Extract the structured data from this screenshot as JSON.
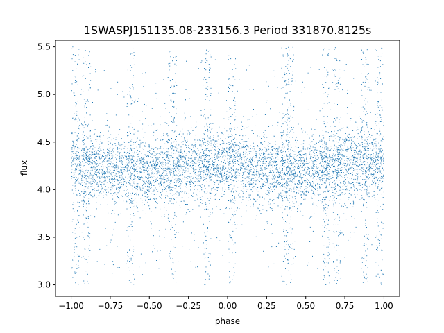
{
  "chart_data": {
    "type": "scatter",
    "title": "1SWASPJ151135.08-233156.3 Period 331870.8125s",
    "xlabel": "phase",
    "ylabel": "flux",
    "xlim": [
      -1.1,
      1.1
    ],
    "ylim": [
      2.88,
      5.57
    ],
    "xticks": [
      -1.0,
      -0.75,
      -0.5,
      -0.25,
      0.0,
      0.25,
      0.5,
      0.75,
      1.0
    ],
    "xtick_labels": [
      "−1.00",
      "−0.75",
      "−0.50",
      "−0.25",
      "0.00",
      "0.25",
      "0.50",
      "0.75",
      "1.00"
    ],
    "yticks": [
      3.0,
      3.5,
      4.0,
      4.5,
      5.0,
      5.5
    ],
    "ytick_labels": [
      "3.0",
      "3.5",
      "4.0",
      "4.5",
      "5.0",
      "5.5"
    ],
    "grid": false,
    "marker_color": "#1f77b4",
    "series_description": "Folded light curve, phase -1.0 to 1.0, flux concentrated 3.9-4.6 centered near 4.25, scatter extending 3.0-5.5 with dense vertical streaks",
    "band": {
      "phase": [
        -1.0,
        -0.75,
        -0.5,
        -0.25,
        0.0,
        0.25,
        0.5,
        0.75,
        1.0
      ],
      "center_flux": [
        4.28,
        4.2,
        4.18,
        4.27,
        4.28,
        4.2,
        4.18,
        4.27,
        4.3
      ],
      "spread": 0.18
    },
    "streaks_phase": [
      -0.97,
      -0.9,
      -0.62,
      -0.35,
      -0.13,
      0.03,
      0.37,
      0.4,
      0.63,
      0.7,
      0.88,
      0.97
    ]
  }
}
